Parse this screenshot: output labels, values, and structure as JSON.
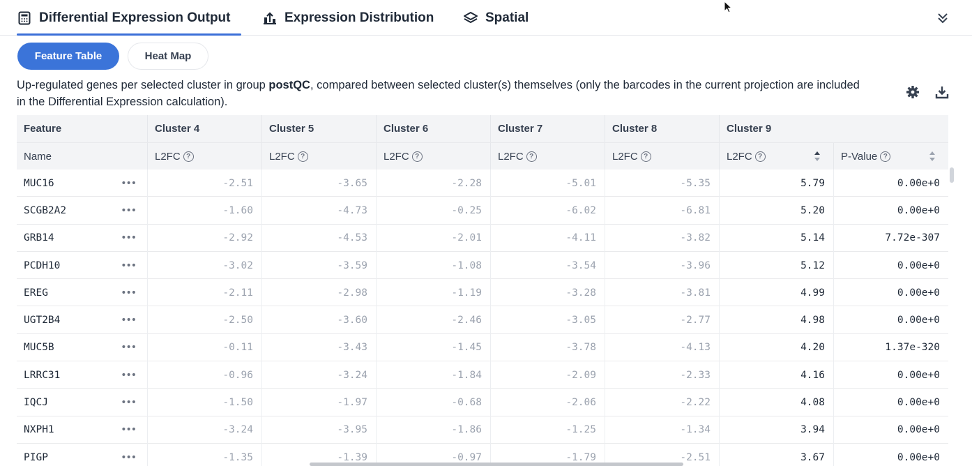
{
  "tabs": [
    {
      "label": "Differential Expression Output",
      "icon": "calculator-icon",
      "active": true
    },
    {
      "label": "Expression Distribution",
      "icon": "chart-upload-icon",
      "active": false
    },
    {
      "label": "Spatial",
      "icon": "layers-icon",
      "active": false
    }
  ],
  "subtabs": {
    "feature_table": "Feature Table",
    "heat_map": "Heat Map"
  },
  "description": {
    "pre": "Up-regulated genes per selected cluster in group ",
    "group": "postQC",
    "post": ", compared between selected cluster(s) themselves (only the barcodes in the current projection are included in the Differential Expression calculation)."
  },
  "table": {
    "group_headers": [
      "Feature",
      "Cluster 4",
      "Cluster 5",
      "Cluster 6",
      "Cluster 7",
      "Cluster 8",
      "Cluster 9"
    ],
    "sub_headers": [
      "Name",
      "L2FC",
      "L2FC",
      "L2FC",
      "L2FC",
      "L2FC",
      "L2FC",
      "P-Value"
    ],
    "help_glyph": "?",
    "more_glyph": "•••",
    "rows": [
      {
        "name": "MUC16",
        "values": [
          "-2.51",
          "-3.65",
          "-2.28",
          "-5.01",
          "-5.35",
          "5.79"
        ],
        "pvalue": "0.00e+0"
      },
      {
        "name": "SCGB2A2",
        "values": [
          "-1.60",
          "-4.73",
          "-0.25",
          "-6.02",
          "-6.81",
          "5.20"
        ],
        "pvalue": "0.00e+0"
      },
      {
        "name": "GRB14",
        "values": [
          "-2.92",
          "-4.53",
          "-2.01",
          "-4.11",
          "-3.82",
          "5.14"
        ],
        "pvalue": "7.72e-307"
      },
      {
        "name": "PCDH10",
        "values": [
          "-3.02",
          "-3.59",
          "-1.08",
          "-3.54",
          "-3.96",
          "5.12"
        ],
        "pvalue": "0.00e+0"
      },
      {
        "name": "EREG",
        "values": [
          "-2.11",
          "-2.98",
          "-1.19",
          "-3.28",
          "-3.81",
          "4.99"
        ],
        "pvalue": "0.00e+0"
      },
      {
        "name": "UGT2B4",
        "values": [
          "-2.50",
          "-3.60",
          "-2.46",
          "-3.05",
          "-2.77",
          "4.98"
        ],
        "pvalue": "0.00e+0"
      },
      {
        "name": "MUC5B",
        "values": [
          "-0.11",
          "-3.43",
          "-1.45",
          "-3.78",
          "-4.13",
          "4.20"
        ],
        "pvalue": "1.37e-320"
      },
      {
        "name": "LRRC31",
        "values": [
          "-0.96",
          "-3.24",
          "-1.84",
          "-2.09",
          "-2.33",
          "4.16"
        ],
        "pvalue": "0.00e+0"
      },
      {
        "name": "IQCJ",
        "values": [
          "-1.50",
          "-1.97",
          "-0.68",
          "-2.06",
          "-2.22",
          "4.08"
        ],
        "pvalue": "0.00e+0"
      },
      {
        "name": "NXPH1",
        "values": [
          "-3.24",
          "-3.95",
          "-1.86",
          "-1.25",
          "-1.34",
          "3.94"
        ],
        "pvalue": "0.00e+0"
      },
      {
        "name": "PIGP",
        "values": [
          "-1.35",
          "-1.39",
          "-0.97",
          "-1.79",
          "-2.51",
          "3.67"
        ],
        "pvalue": "0.00e+0"
      }
    ]
  },
  "colors": {
    "accent": "#3b74d9",
    "header_bg": "#f3f4f6",
    "muted_text": "#9ca3af"
  }
}
